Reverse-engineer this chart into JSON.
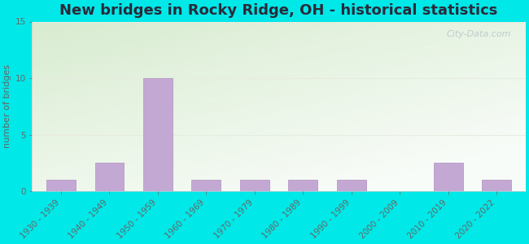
{
  "title": "New bridges in Rocky Ridge, OH - historical statistics",
  "ylabel": "number of bridges",
  "categories": [
    "1930 - 1939",
    "1940 - 1949",
    "1950 - 1959",
    "1960 - 1969",
    "1970 - 1979",
    "1980 - 1989",
    "1990 - 1999",
    "2000 - 2009",
    "2010 - 2019",
    "2020 - 2022"
  ],
  "values": [
    1,
    2.5,
    10,
    1,
    1,
    1,
    1,
    0,
    2.5,
    1
  ],
  "bar_color": "#c4a8d4",
  "bar_edge_color": "#b090be",
  "ylim": [
    0,
    15
  ],
  "yticks": [
    0,
    5,
    10,
    15
  ],
  "background_outer": "#00e8e8",
  "plot_bg_color_topleft": "#d8ecd0",
  "plot_bg_color_right": "#f0f8f0",
  "plot_bg_color_bottom": "#f8faff",
  "title_fontsize": 13,
  "ylabel_fontsize": 8,
  "tick_fontsize": 7.5,
  "watermark_text": "City-Data.com",
  "watermark_color": "#b8c8cc",
  "title_color": "#2a2a3a",
  "axis_color": "#666666",
  "tick_label_color": "#555555",
  "grid_color": "#e8ece0"
}
